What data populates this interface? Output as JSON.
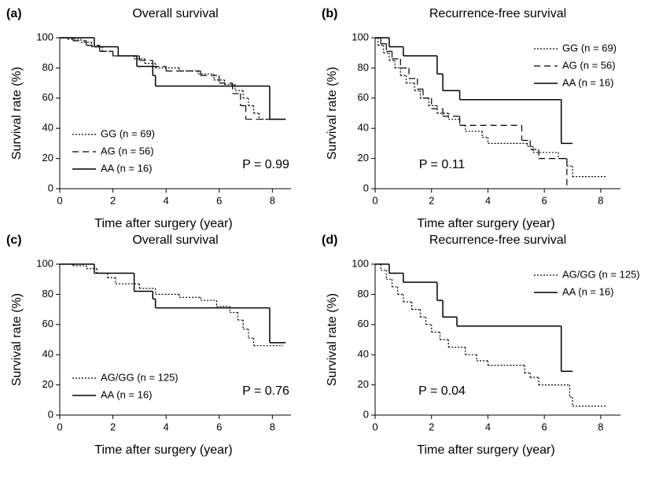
{
  "chart_data": [
    {
      "type": "step",
      "label": "(a)",
      "title": "Overall survival",
      "x_label": "Time after surgery (year)",
      "y_label": "Survival rate (%)",
      "annotation": "P = 0.99",
      "legend": "bottom-left",
      "xlim": [
        0,
        8.7
      ],
      "ylim": [
        0,
        100
      ],
      "xticks": [
        0,
        2,
        4,
        6,
        8
      ],
      "yticks": [
        0,
        20,
        40,
        60,
        80,
        100
      ],
      "series": [
        {
          "name": "GG (n = 69)",
          "color": "#000000",
          "dash": "dotted",
          "x": [
            0,
            0.3,
            0.8,
            1.2,
            1.6,
            2.0,
            2.8,
            3.2,
            3.6,
            4.5,
            5.2,
            5.8,
            6.2,
            6.6,
            6.9,
            7.1,
            7.3,
            7.5,
            8.5
          ],
          "values": [
            100,
            99,
            97,
            94,
            91,
            88,
            86,
            83,
            80,
            78,
            76,
            72,
            69,
            65,
            60,
            55,
            50,
            46,
            46
          ]
        },
        {
          "name": "AG (n = 56)",
          "color": "#000000",
          "dash": "dashed",
          "x": [
            0,
            0.5,
            1.0,
            1.5,
            2.0,
            3.0,
            3.5,
            4.0,
            5.3,
            6.0,
            6.5,
            6.8,
            7.0,
            8.4
          ],
          "values": [
            100,
            98,
            95,
            91,
            88,
            85,
            81,
            78,
            75,
            70,
            63,
            55,
            46,
            46
          ]
        },
        {
          "name": "AA (n = 16)",
          "color": "#000000",
          "dash": "solid",
          "x": [
            0,
            1.3,
            2.2,
            2.9,
            3.5,
            3.6,
            7.9,
            8.5
          ],
          "values": [
            100,
            94,
            88,
            81,
            75,
            68,
            46,
            46
          ]
        }
      ]
    },
    {
      "type": "step",
      "label": "(b)",
      "title": "Recurrence-free survival",
      "x_label": "Time after surgery (year)",
      "y_label": "Survival rate (%)",
      "annotation": "P = 0.11",
      "legend": "top-right",
      "xlim": [
        0,
        8.7
      ],
      "ylim": [
        0,
        100
      ],
      "xticks": [
        0,
        2,
        4,
        6,
        8
      ],
      "yticks": [
        0,
        20,
        40,
        60,
        80,
        100
      ],
      "series": [
        {
          "name": "GG (n = 69)",
          "color": "#000000",
          "dash": "dotted",
          "x": [
            0,
            0.1,
            0.3,
            0.5,
            0.7,
            0.9,
            1.1,
            1.4,
            1.6,
            1.9,
            2.2,
            2.6,
            3.0,
            3.2,
            3.8,
            4.0,
            5.4,
            5.6,
            6.5,
            6.8,
            7.0,
            8.2
          ],
          "values": [
            100,
            95,
            90,
            85,
            80,
            75,
            70,
            65,
            60,
            55,
            50,
            46,
            42,
            38,
            34,
            30,
            28,
            24,
            20,
            15,
            8,
            8
          ]
        },
        {
          "name": "AG (n = 56)",
          "color": "#000000",
          "dash": "dashed",
          "x": [
            0,
            0.2,
            0.4,
            0.6,
            0.9,
            1.2,
            1.5,
            1.7,
            2.0,
            2.4,
            3.0,
            5.2,
            5.5,
            5.8,
            6.8
          ],
          "values": [
            100,
            96,
            91,
            86,
            80,
            73,
            66,
            60,
            53,
            48,
            42,
            32,
            26,
            20,
            0
          ]
        },
        {
          "name": "AA (n = 16)",
          "color": "#000000",
          "dash": "solid",
          "x": [
            0,
            0.5,
            1.0,
            2.2,
            2.4,
            3.0,
            6.6,
            7.0
          ],
          "values": [
            100,
            94,
            88,
            76,
            65,
            59,
            30,
            30
          ]
        }
      ]
    },
    {
      "type": "step",
      "label": "(c)",
      "title": "Overall survival",
      "x_label": "Time after surgery (year)",
      "y_label": "Survival rate (%)",
      "annotation": "P = 0.76",
      "legend": "bottom-left",
      "xlim": [
        0,
        8.7
      ],
      "ylim": [
        0,
        100
      ],
      "xticks": [
        0,
        2,
        4,
        6,
        8
      ],
      "yticks": [
        0,
        20,
        40,
        60,
        80,
        100
      ],
      "series": [
        {
          "name": "AG/GG (n = 125)",
          "color": "#000000",
          "dash": "dotted",
          "x": [
            0,
            0.5,
            1.0,
            1.4,
            1.8,
            2.1,
            3.0,
            3.6,
            4.5,
            5.3,
            5.9,
            6.4,
            6.7,
            6.9,
            7.1,
            7.3,
            8.4
          ],
          "values": [
            100,
            99,
            97,
            94,
            91,
            87,
            84,
            80,
            78,
            76,
            72,
            68,
            63,
            57,
            51,
            46,
            46
          ]
        },
        {
          "name": "AA (n = 16)",
          "color": "#000000",
          "dash": "solid",
          "x": [
            0,
            1.3,
            2.8,
            3.5,
            3.6,
            7.9,
            8.5
          ],
          "values": [
            100,
            94,
            82,
            77,
            71,
            48,
            48
          ]
        }
      ]
    },
    {
      "type": "step",
      "label": "(d)",
      "title": "Recurrence-free survival",
      "x_label": "Time after surgery (year)",
      "y_label": "Survival rate (%)",
      "annotation": "P = 0.04",
      "legend": "top-right",
      "xlim": [
        0,
        8.7
      ],
      "ylim": [
        0,
        100
      ],
      "xticks": [
        0,
        2,
        4,
        6,
        8
      ],
      "yticks": [
        0,
        20,
        40,
        60,
        80,
        100
      ],
      "series": [
        {
          "name": "AG/GG (n = 125)",
          "color": "#000000",
          "dash": "dotted",
          "x": [
            0,
            0.2,
            0.4,
            0.6,
            0.8,
            1.0,
            1.3,
            1.6,
            1.8,
            2.0,
            2.3,
            2.6,
            3.2,
            3.6,
            4.0,
            5.3,
            5.5,
            5.8,
            6.9,
            7.0,
            8.2
          ],
          "values": [
            100,
            96,
            90,
            85,
            80,
            75,
            70,
            65,
            60,
            55,
            50,
            45,
            40,
            36,
            33,
            28,
            25,
            20,
            12,
            6,
            6
          ]
        },
        {
          "name": "AA (n = 16)",
          "color": "#000000",
          "dash": "solid",
          "x": [
            0,
            0.5,
            1.0,
            2.2,
            2.4,
            2.9,
            6.6,
            7.0
          ],
          "values": [
            100,
            94,
            88,
            76,
            65,
            59,
            29,
            29
          ]
        }
      ]
    }
  ]
}
